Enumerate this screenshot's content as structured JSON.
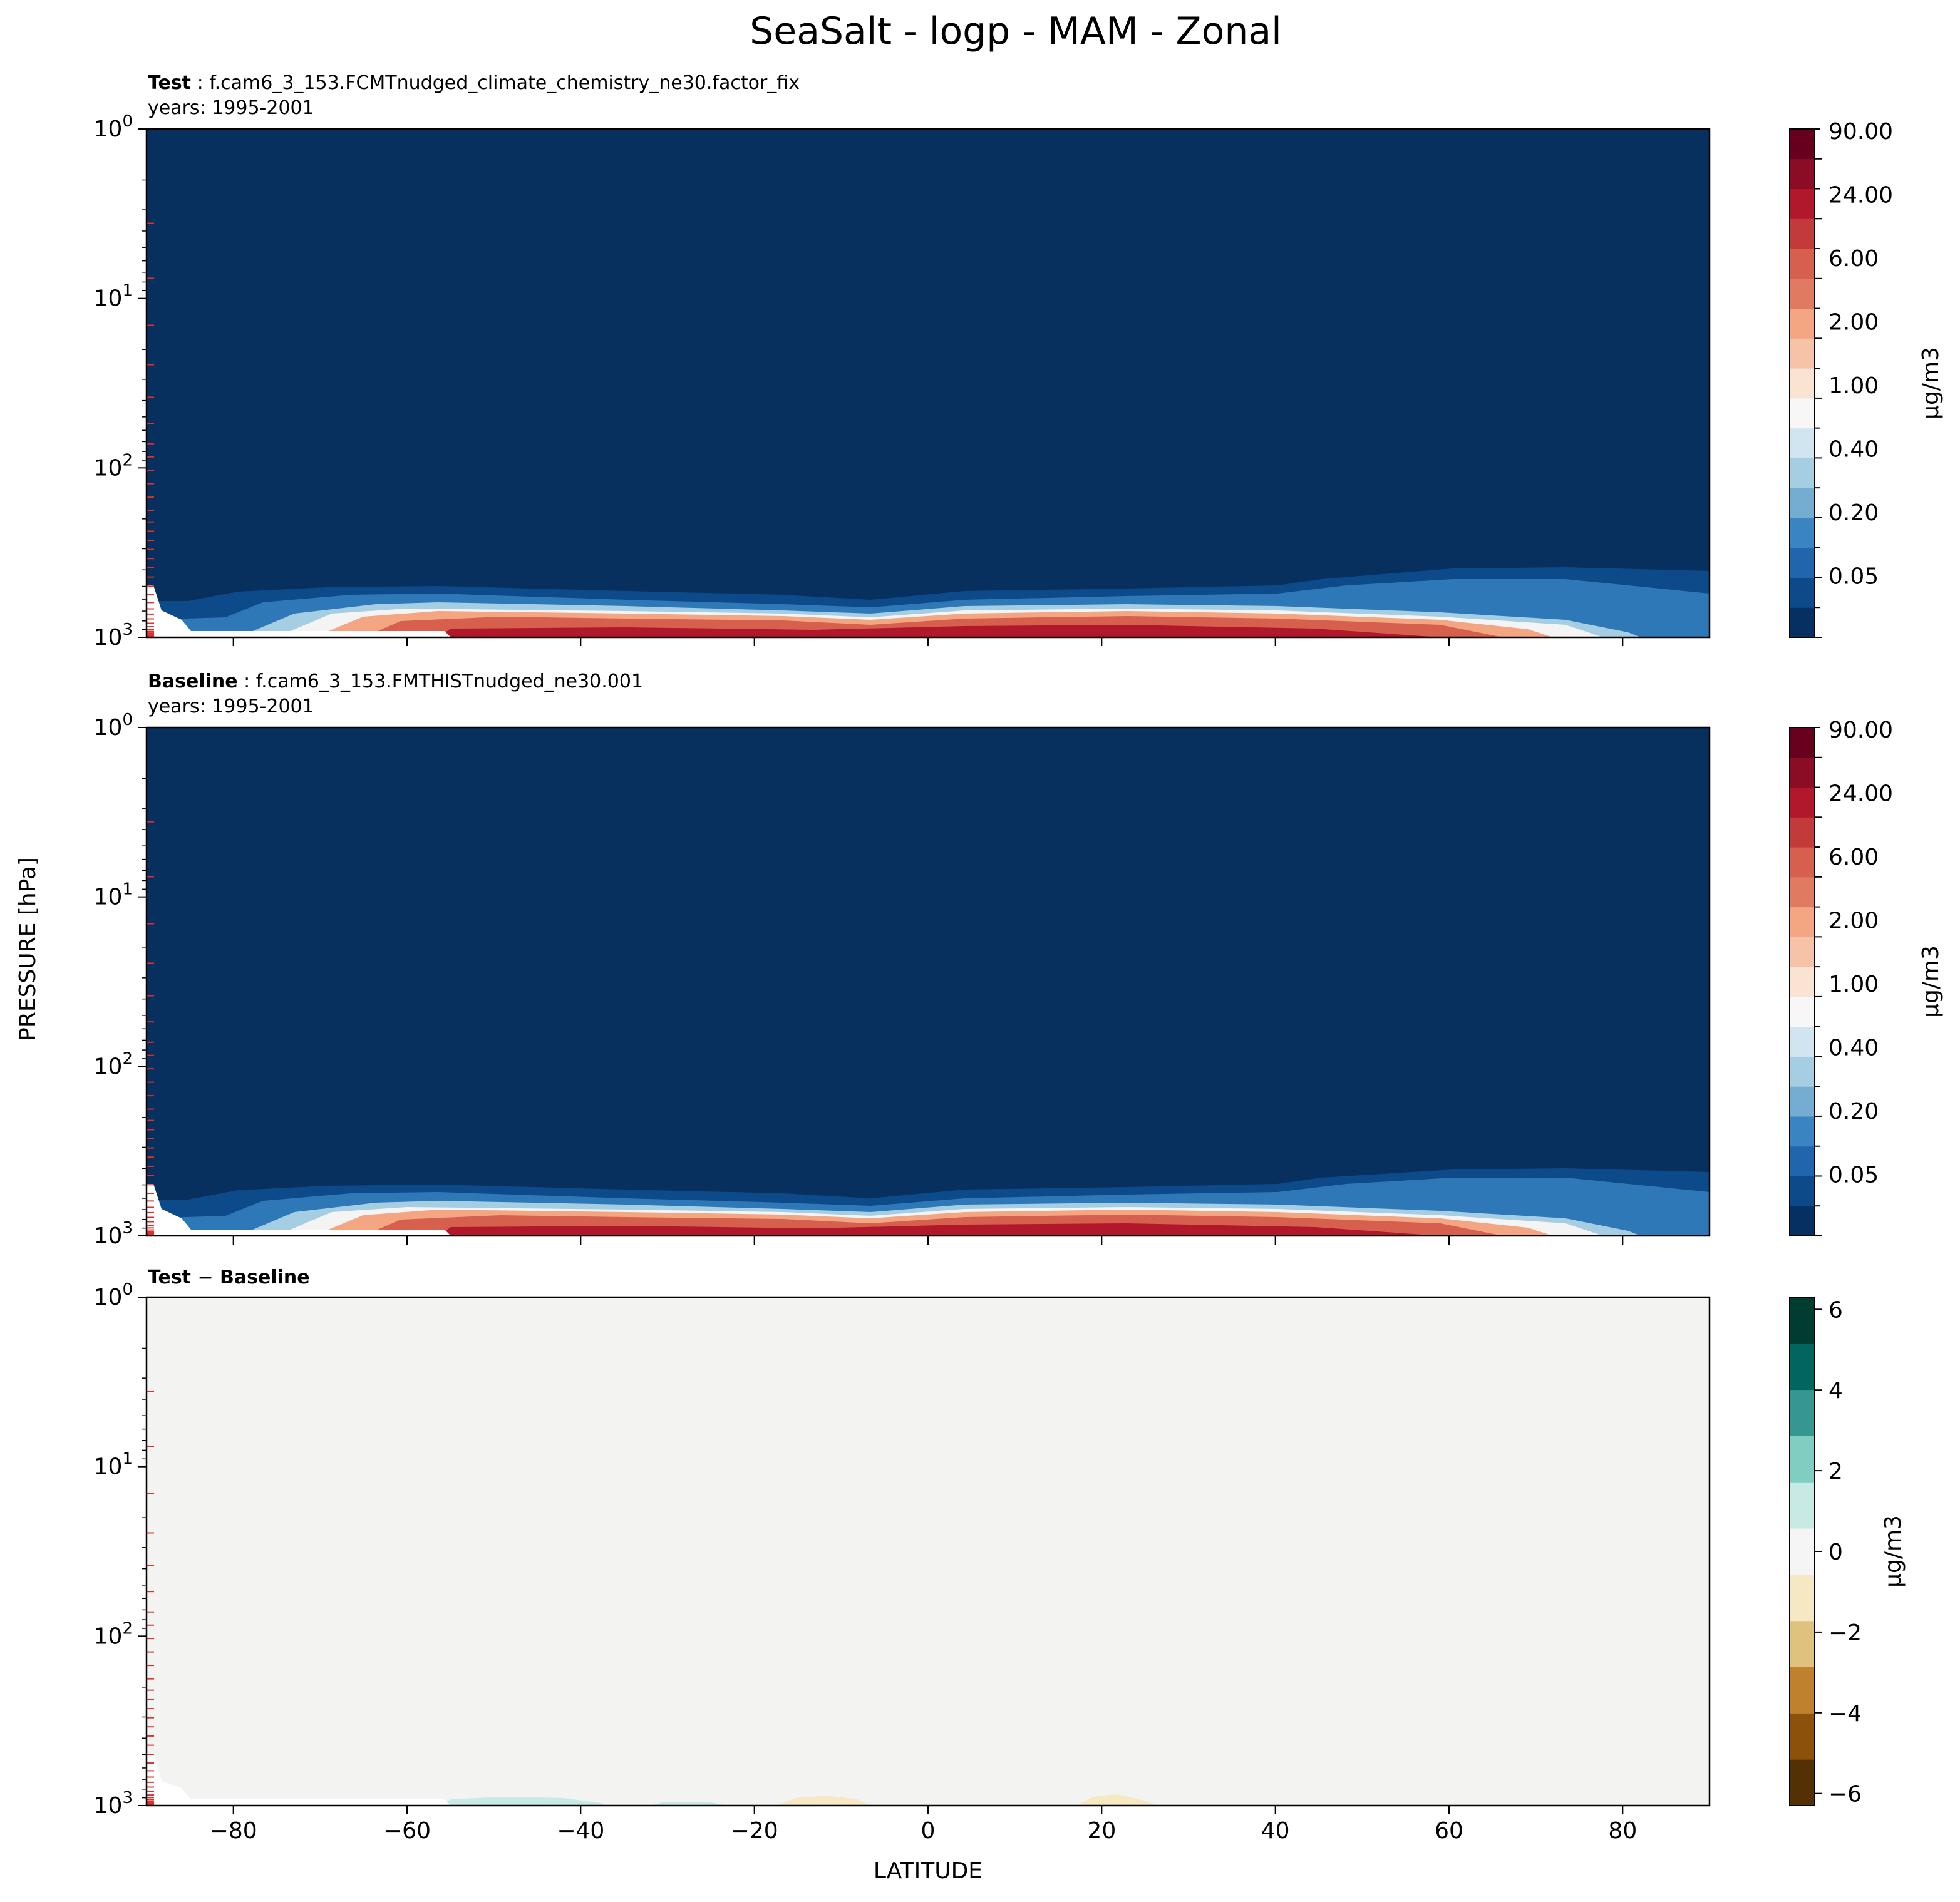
{
  "title": "SeaSalt - logp - MAM - Zonal",
  "ylabel": "PRESSURE [hPa]",
  "xlabel": "LATITUDE",
  "x_ticks": [
    "−80",
    "−60",
    "−40",
    "−20",
    "0",
    "20",
    "40",
    "60",
    "80"
  ],
  "y_ticks": [
    {
      "base": "10",
      "exp": "0"
    },
    {
      "base": "10",
      "exp": "1"
    },
    {
      "base": "10",
      "exp": "2"
    },
    {
      "base": "10",
      "exp": "3"
    }
  ],
  "panels": [
    {
      "bold": "Test",
      "label": ": f.cam6_3_153.FCMTnudged_climate_chemistry_ne30.factor_fix",
      "years": "years: 1995-2001",
      "cbar_unit": "μg/m3",
      "cbar_ticks": [
        "90.00",
        "24.00",
        "6.00",
        "2.00",
        "1.00",
        "0.40",
        "0.20",
        "0.05"
      ]
    },
    {
      "bold": "Baseline",
      "label": ": f.cam6_3_153.FMTHISTnudged_ne30.001",
      "years": "years: 1995-2001",
      "cbar_unit": "μg/m3",
      "cbar_ticks": [
        "90.00",
        "24.00",
        "6.00",
        "2.00",
        "1.00",
        "0.40",
        "0.20",
        "0.05"
      ]
    },
    {
      "bold": "Test − Baseline",
      "label": "",
      "years": "",
      "cbar_unit": "μg/m3",
      "cbar_ticks": [
        "6",
        "4",
        "2",
        "0",
        "−2",
        "−4",
        "−6"
      ]
    }
  ],
  "chart_data": {
    "type": "heatmap",
    "subtype": "filled contour, zonal mean",
    "xlim": [
      -90,
      90
    ],
    "ylim": [
      1000,
      1
    ],
    "y_scale": "log",
    "variable": "SeaSalt",
    "season": "MAM",
    "colors": {
      "seq_colormap": [
        "#053061",
        "#0d4a8a",
        "#2166ac",
        "#3a85c1",
        "#74add1",
        "#a6cee3",
        "#d1e5f0",
        "#f7f7f7",
        "#fbe3d4",
        "#f7c3a8",
        "#f4a582",
        "#e07b62",
        "#d6604d",
        "#c23a3a",
        "#b2182b",
        "#8a0d25",
        "#67001f"
      ],
      "diff_colormap": [
        "#543005",
        "#8c510a",
        "#bf812d",
        "#dfc27d",
        "#f6e8c3",
        "#f5f5f5",
        "#c7eae5",
        "#80cdc1",
        "#35978f",
        "#01665e",
        "#003c30"
      ],
      "missing": "#ffffff",
      "model_level_ticks": "#e0302a"
    },
    "panels": [
      {
        "name": "Test",
        "colorbar_levels": [
          0.05,
          0.2,
          0.4,
          1.0,
          2.0,
          6.0,
          24.0,
          90.0
        ],
        "features": [
          {
            "region": "lat -90 to 90, 1-300 hPa",
            "value": "<0.05"
          },
          {
            "region": "lat -70 to 50, 550-1000 hPa",
            "value": "0.05-0.4"
          },
          {
            "region": "lat 40 to 90, 400-1000 hPa",
            "value": "0.05-0.2"
          },
          {
            "region": "lat -60 to 75, 700-1000 hPa",
            "value": "1-90 (maximum near surface)"
          }
        ]
      },
      {
        "name": "Baseline",
        "colorbar_levels": [
          0.05,
          0.2,
          0.4,
          1.0,
          2.0,
          6.0,
          24.0,
          90.0
        ],
        "features": [
          {
            "region": "lat -90 to 90, 1-300 hPa",
            "value": "<0.05"
          },
          {
            "region": "lat -70 to 50, 550-1000 hPa",
            "value": "0.05-0.4"
          },
          {
            "region": "lat 40 to 90, 400-1000 hPa",
            "value": "0.05-0.2"
          },
          {
            "region": "lat -60 to 75, 700-1000 hPa",
            "value": "1-90 (maximum near surface)"
          }
        ]
      },
      {
        "name": "Test - Baseline",
        "colorbar_levels": [
          -6,
          -4,
          -2,
          0,
          2,
          4,
          6
        ],
        "features": [
          {
            "region": "most of domain",
            "value": "~0"
          },
          {
            "region": "lat -55 to -40, near 1000 hPa",
            "value": "0 to 2 (small positive)"
          },
          {
            "region": "lat -15 to -10 and 20 to 25, near 1000 hPa",
            "value": "-2 to 0 (small negative)"
          }
        ]
      }
    ]
  }
}
